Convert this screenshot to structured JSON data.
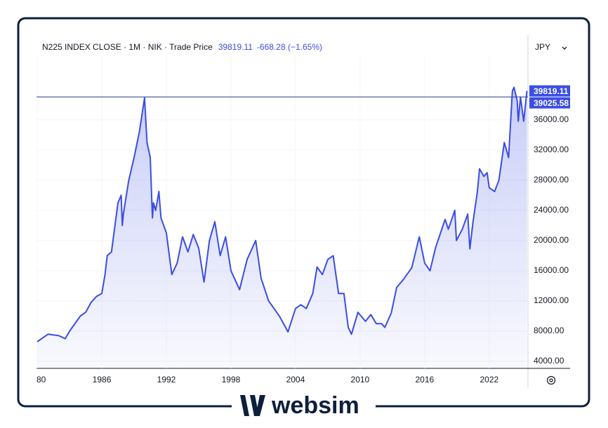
{
  "header": {
    "instrument": "N225 INDEX CLOSE · 1M · NIK · Trade Price",
    "price": 39819.11,
    "change": "-668.28 (−1.65%)"
  },
  "currency": "JPY",
  "logo": "websim",
  "chart_data": {
    "type": "area",
    "color": "#3b4de3",
    "x": [
      1980.0,
      1981.0,
      1982.0,
      1982.6,
      1983.0,
      1984.0,
      1984.5,
      1985.0,
      1985.5,
      1986.0,
      1986.3,
      1986.5,
      1986.9,
      1987.5,
      1987.8,
      1987.9,
      1988.0,
      1988.5,
      1989.0,
      1989.5,
      1989.97,
      1990.2,
      1990.5,
      1990.7,
      1990.8,
      1991.0,
      1991.3,
      1991.5,
      1992.0,
      1992.5,
      1993.0,
      1993.5,
      1994.0,
      1994.5,
      1995.0,
      1995.5,
      1996.0,
      1996.5,
      1997.0,
      1997.5,
      1998.0,
      1998.8,
      1999.5,
      2000.3,
      2000.8,
      2001.5,
      2002.0,
      2002.5,
      2003.3,
      2004.0,
      2004.5,
      2005.0,
      2005.6,
      2006.0,
      2006.5,
      2007.0,
      2007.5,
      2008.0,
      2008.5,
      2008.9,
      2009.2,
      2009.8,
      2010.5,
      2011.0,
      2011.5,
      2012.0,
      2012.3,
      2012.9,
      2013.4,
      2014.0,
      2014.8,
      2015.5,
      2016.0,
      2016.5,
      2017.0,
      2017.9,
      2018.2,
      2018.8,
      2018.95,
      2019.5,
      2020.0,
      2020.2,
      2020.5,
      2020.9,
      2021.1,
      2021.5,
      2021.8,
      2022.0,
      2022.5,
      2022.9,
      2023.4,
      2023.8,
      2024.15,
      2024.3,
      2024.6,
      2024.7,
      2024.9,
      2025.0,
      2025.2,
      2025.5
    ],
    "series": [
      {
        "values": [
          6600,
          7600,
          7400,
          7000,
          8000,
          10000,
          10500,
          11800,
          12600,
          13000,
          15500,
          18000,
          18500,
          25000,
          26000,
          22000,
          23500,
          28000,
          31000,
          34500,
          38900,
          33000,
          31000,
          23000,
          25000,
          24000,
          26500,
          23000,
          21000,
          15500,
          17000,
          20500,
          18500,
          20800,
          19000,
          14500,
          20000,
          22500,
          18000,
          20500,
          16000,
          13500,
          17500,
          20000,
          15000,
          12000,
          11000,
          10000,
          7900,
          11000,
          11500,
          11000,
          13000,
          16500,
          15500,
          17500,
          18000,
          13000,
          13000,
          8500,
          7600,
          10500,
          9300,
          10200,
          9000,
          9000,
          8500,
          10400,
          13800,
          14800,
          16400,
          20500,
          17000,
          16000,
          19000,
          22800,
          21500,
          24000,
          20000,
          21500,
          23500,
          18900,
          22500,
          26500,
          29500,
          28500,
          29000,
          27000,
          26500,
          28000,
          33000,
          31000,
          39800,
          40300,
          38500,
          35800,
          39000,
          38000,
          35800,
          39819.11
        ]
      }
    ],
    "xlim": [
      1979.93,
      2025.6
    ],
    "ylim": [
      3070,
      43500
    ],
    "xticks": [
      {
        "value": 1980,
        "label": "80"
      },
      1986,
      1992,
      1998,
      2004,
      2010,
      2016,
      2022
    ],
    "yticks": [
      {
        "value": 4000,
        "label": "4000.00"
      },
      {
        "value": 8000,
        "label": "8000.00"
      },
      {
        "value": 12000,
        "label": "12000.00"
      },
      {
        "value": 16000,
        "label": "16000.00"
      },
      {
        "value": 20000,
        "label": "20000.00"
      },
      {
        "value": 24000,
        "label": "24000.00"
      },
      {
        "value": 28000,
        "label": "28000.00"
      },
      {
        "value": 32000,
        "label": "32000.00"
      },
      {
        "value": 36000,
        "label": "36000.00"
      }
    ],
    "price_tags": [
      39819.11,
      39025.58
    ],
    "price_line": 39025.58,
    "grid": true
  }
}
